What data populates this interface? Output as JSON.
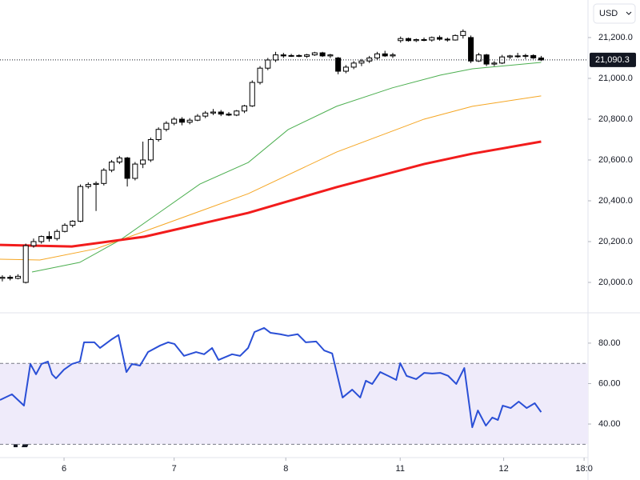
{
  "currency": "USD",
  "chart_data": [
    {
      "type": "candlestick",
      "xlim": [
        -0.3,
        75
      ],
      "xticks": [
        {
          "value": 7.9,
          "label": "6"
        },
        {
          "value": 22.0,
          "label": "7"
        },
        {
          "value": 36.3,
          "label": "8"
        },
        {
          "value": 50.95,
          "label": "11"
        },
        {
          "value": 64.2,
          "label": "12"
        },
        {
          "value": 74.5,
          "label": "18:0"
        }
      ],
      "ylim": [
        19855,
        21384
      ],
      "yticks": [
        {
          "value": 20000,
          "label": "20,000.0"
        },
        {
          "value": 20200,
          "label": "20,200.0"
        },
        {
          "value": 20400,
          "label": "20,400.0"
        },
        {
          "value": 20600,
          "label": "20,600.0"
        },
        {
          "value": 20800,
          "label": "20,800.0"
        },
        {
          "value": 21000,
          "label": "21,000.0"
        },
        {
          "value": 21200,
          "label": "21,200.0"
        }
      ],
      "last_price": {
        "value": 21090.3,
        "label": "21,090.3"
      },
      "up_color": "#ffffff",
      "down_color": "#000000",
      "open": [
        20020,
        20025,
        20020,
        20000,
        20180,
        20200,
        20225,
        20215,
        20250,
        20280,
        20300,
        20470,
        20480,
        20485,
        20550,
        20590,
        20610,
        20510,
        20580,
        20600,
        20700,
        20750,
        20780,
        20800,
        20785,
        20795,
        20815,
        20830,
        20835,
        20825,
        20820,
        20840,
        20865,
        20980,
        21050,
        21090,
        21115,
        21110,
        21112,
        21108,
        21115,
        21125,
        21110,
        21100,
        21035,
        21055,
        21075,
        21085,
        21100,
        21120,
        21110,
        21185,
        21195,
        21185,
        21190,
        21188,
        21200,
        21192,
        21188,
        21210,
        21200,
        21085,
        21115,
        21070,
        21075,
        21105,
        21110,
        21108,
        21112,
        21100
      ],
      "high": [
        20035,
        20035,
        20040,
        20190,
        20215,
        20230,
        20250,
        20260,
        20290,
        20305,
        20480,
        20490,
        20495,
        20560,
        20600,
        20620,
        20615,
        20590,
        20690,
        20710,
        20760,
        20790,
        20810,
        20810,
        20805,
        20825,
        20840,
        20850,
        20845,
        20835,
        20845,
        20870,
        20990,
        21060,
        21100,
        21130,
        21125,
        21120,
        21118,
        21120,
        21130,
        21130,
        21120,
        21105,
        21065,
        21085,
        21095,
        21110,
        21130,
        21135,
        21125,
        21205,
        21200,
        21195,
        21200,
        21205,
        21210,
        21200,
        21215,
        21240,
        21210,
        21125,
        21120,
        21085,
        21115,
        21115,
        21125,
        21120,
        21118,
        21110
      ],
      "low": [
        20005,
        20010,
        20015,
        19995,
        20170,
        20190,
        20200,
        20205,
        20245,
        20270,
        20295,
        20460,
        20350,
        20475,
        20540,
        20580,
        20470,
        20500,
        20560,
        20590,
        20690,
        20740,
        20770,
        20770,
        20775,
        20790,
        20805,
        20820,
        20815,
        20815,
        20815,
        20830,
        20860,
        20970,
        21040,
        21080,
        21100,
        21105,
        21104,
        21100,
        21110,
        21105,
        21100,
        21020,
        21025,
        21045,
        21060,
        21075,
        21090,
        21105,
        21100,
        21175,
        21180,
        21178,
        21182,
        21180,
        21185,
        21180,
        21185,
        21195,
        21075,
        21080,
        21060,
        21060,
        21070,
        21095,
        21100,
        21095,
        21095,
        21085
      ],
      "close": [
        20025,
        20020,
        20030,
        20180,
        20200,
        20225,
        20215,
        20250,
        20280,
        20300,
        20470,
        20480,
        20485,
        20550,
        20590,
        20610,
        20510,
        20580,
        20600,
        20700,
        20750,
        20780,
        20800,
        20785,
        20795,
        20815,
        20830,
        20835,
        20825,
        20820,
        20840,
        20865,
        20980,
        21050,
        21090,
        21115,
        21110,
        21112,
        21108,
        21115,
        21125,
        21110,
        21115,
        21035,
        21055,
        21075,
        21085,
        21100,
        21120,
        21110,
        21115,
        21195,
        21185,
        21190,
        21188,
        21200,
        21192,
        21188,
        21210,
        21230,
        21085,
        21115,
        21070,
        21075,
        21105,
        21110,
        21108,
        21112,
        21100,
        21090.3
      ],
      "series": [
        {
          "color": "#4caf50",
          "x": [
            3.8,
            9.9,
            15.1,
            20.2,
            25.3,
            31.5,
            36.6,
            42.8,
            49.9,
            56.1,
            60.2,
            69.0
          ],
          "values": [
            20051,
            20098,
            20208,
            20345,
            20482,
            20588,
            20749,
            20863,
            20953,
            21016,
            21047,
            21078
          ]
        },
        {
          "color": "#f5a623",
          "x": [
            -0.3,
            4.8,
            12.0,
            20.2,
            31.5,
            42.8,
            54.0,
            60.2,
            69.0
          ],
          "values": [
            20114,
            20110,
            20165,
            20278,
            20435,
            20639,
            20800,
            20863,
            20914
          ]
        },
        {
          "color": "#f21c1c",
          "x": [
            -0.3,
            8.9,
            18.2,
            31.5,
            42.8,
            54.0,
            60.2,
            69.0
          ],
          "values": [
            20184,
            20176,
            20224,
            20341,
            20467,
            20580,
            20631,
            20690
          ]
        }
      ]
    },
    {
      "type": "line",
      "xlim": [
        -0.3,
        75
      ],
      "ylim": [
        23.4,
        94.6
      ],
      "yticks": [
        {
          "value": 40,
          "label": "40.00"
        },
        {
          "value": 60,
          "label": "60.00"
        },
        {
          "value": 80,
          "label": "80.00"
        }
      ],
      "band": [
        30,
        70
      ],
      "band_color": "#efebfa",
      "series": [
        {
          "color": "#2a4fd6",
          "x": [
            -0.3,
            1.23,
            2.77,
            3.59,
            4.31,
            5.02,
            5.84,
            6.36,
            6.87,
            7.89,
            8.92,
            9.94,
            10.46,
            11.79,
            12.51,
            14.05,
            14.87,
            15.89,
            16.6,
            17.63,
            18.66,
            20.2,
            21.22,
            22.04,
            23.27,
            24.81,
            25.84,
            26.86,
            27.68,
            29.42,
            30.45,
            31.47,
            32.29,
            33.52,
            34.35,
            35.58,
            36.6,
            37.83,
            38.86,
            40.19,
            41.21,
            42.24,
            43.57,
            44.8,
            45.83,
            46.55,
            47.37,
            48.39,
            49.42,
            50.44,
            50.95,
            51.77,
            53.0,
            54.03,
            55.05,
            56.08,
            57.1,
            58.13,
            59.16,
            60.18,
            60.9,
            61.92,
            62.74,
            63.46,
            64.08,
            65.1,
            66.13,
            67.15,
            68.18,
            69.0
          ],
          "values": [
            51.9,
            54.7,
            49.1,
            69.7,
            64.6,
            69.7,
            70.9,
            64.6,
            62.6,
            66.9,
            69.7,
            70.9,
            80.4,
            80.4,
            77.6,
            82.0,
            84.0,
            65.7,
            69.7,
            68.9,
            75.6,
            78.8,
            80.4,
            79.6,
            73.7,
            75.6,
            74.5,
            77.6,
            71.7,
            74.5,
            73.7,
            77.6,
            85.5,
            87.5,
            85.1,
            84.4,
            83.6,
            84.4,
            80.4,
            80.8,
            76.4,
            74.9,
            53.1,
            57.0,
            53.1,
            61.4,
            59.8,
            65.7,
            63.8,
            61.8,
            70.1,
            63.8,
            62.2,
            65.3,
            65.0,
            65.3,
            63.8,
            59.8,
            67.7,
            38.4,
            46.7,
            39.2,
            43.2,
            42.0,
            49.1,
            47.9,
            51.1,
            47.9,
            50.3,
            45.9
          ]
        }
      ]
    }
  ]
}
